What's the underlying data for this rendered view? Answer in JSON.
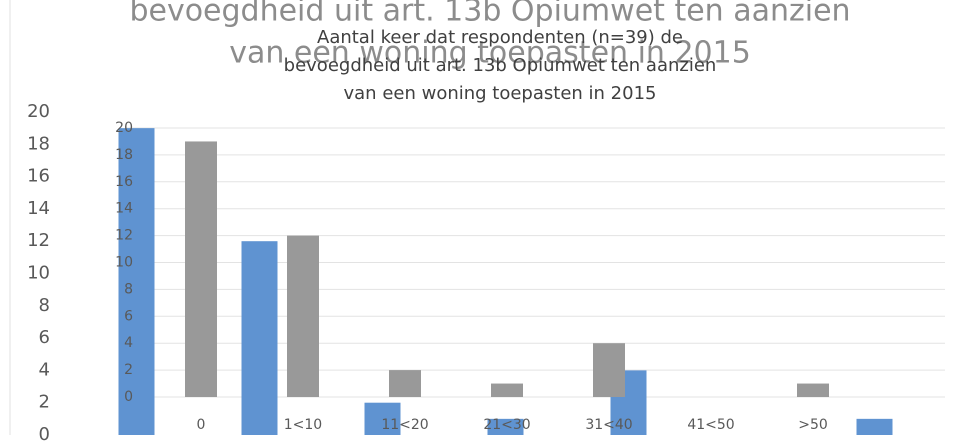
{
  "chart_data": [
    {
      "type": "bar",
      "title": [
        "bevoegdheid uit art. 13b Opiumwet ten aanzien",
        "van een woning toepasten in 2015"
      ],
      "values": [
        19,
        12,
        2,
        1,
        4,
        0,
        1
      ],
      "color": "#5f93d1",
      "ylim": [
        0,
        20
      ],
      "yticks": [
        0,
        2,
        4,
        6,
        8,
        10,
        12,
        14,
        16,
        18,
        20
      ]
    },
    {
      "type": "bar",
      "title": [
        "Aantal keer dat respondenten (n=39) de",
        "bevoegdheid uit art. 13b Opiumwet ten aanzien",
        "van een woning toepasten in 2015"
      ],
      "categories": [
        "0",
        "1<10",
        "11<20",
        "21<30",
        "31<40",
        "41<50",
        ">50"
      ],
      "values": [
        19,
        12,
        2,
        1,
        4,
        0,
        1
      ],
      "color": "#999999",
      "ylim": [
        0,
        20
      ],
      "yticks": [
        0,
        2,
        4,
        6,
        8,
        10,
        12,
        14,
        16,
        18,
        20
      ],
      "grid": true
    }
  ]
}
